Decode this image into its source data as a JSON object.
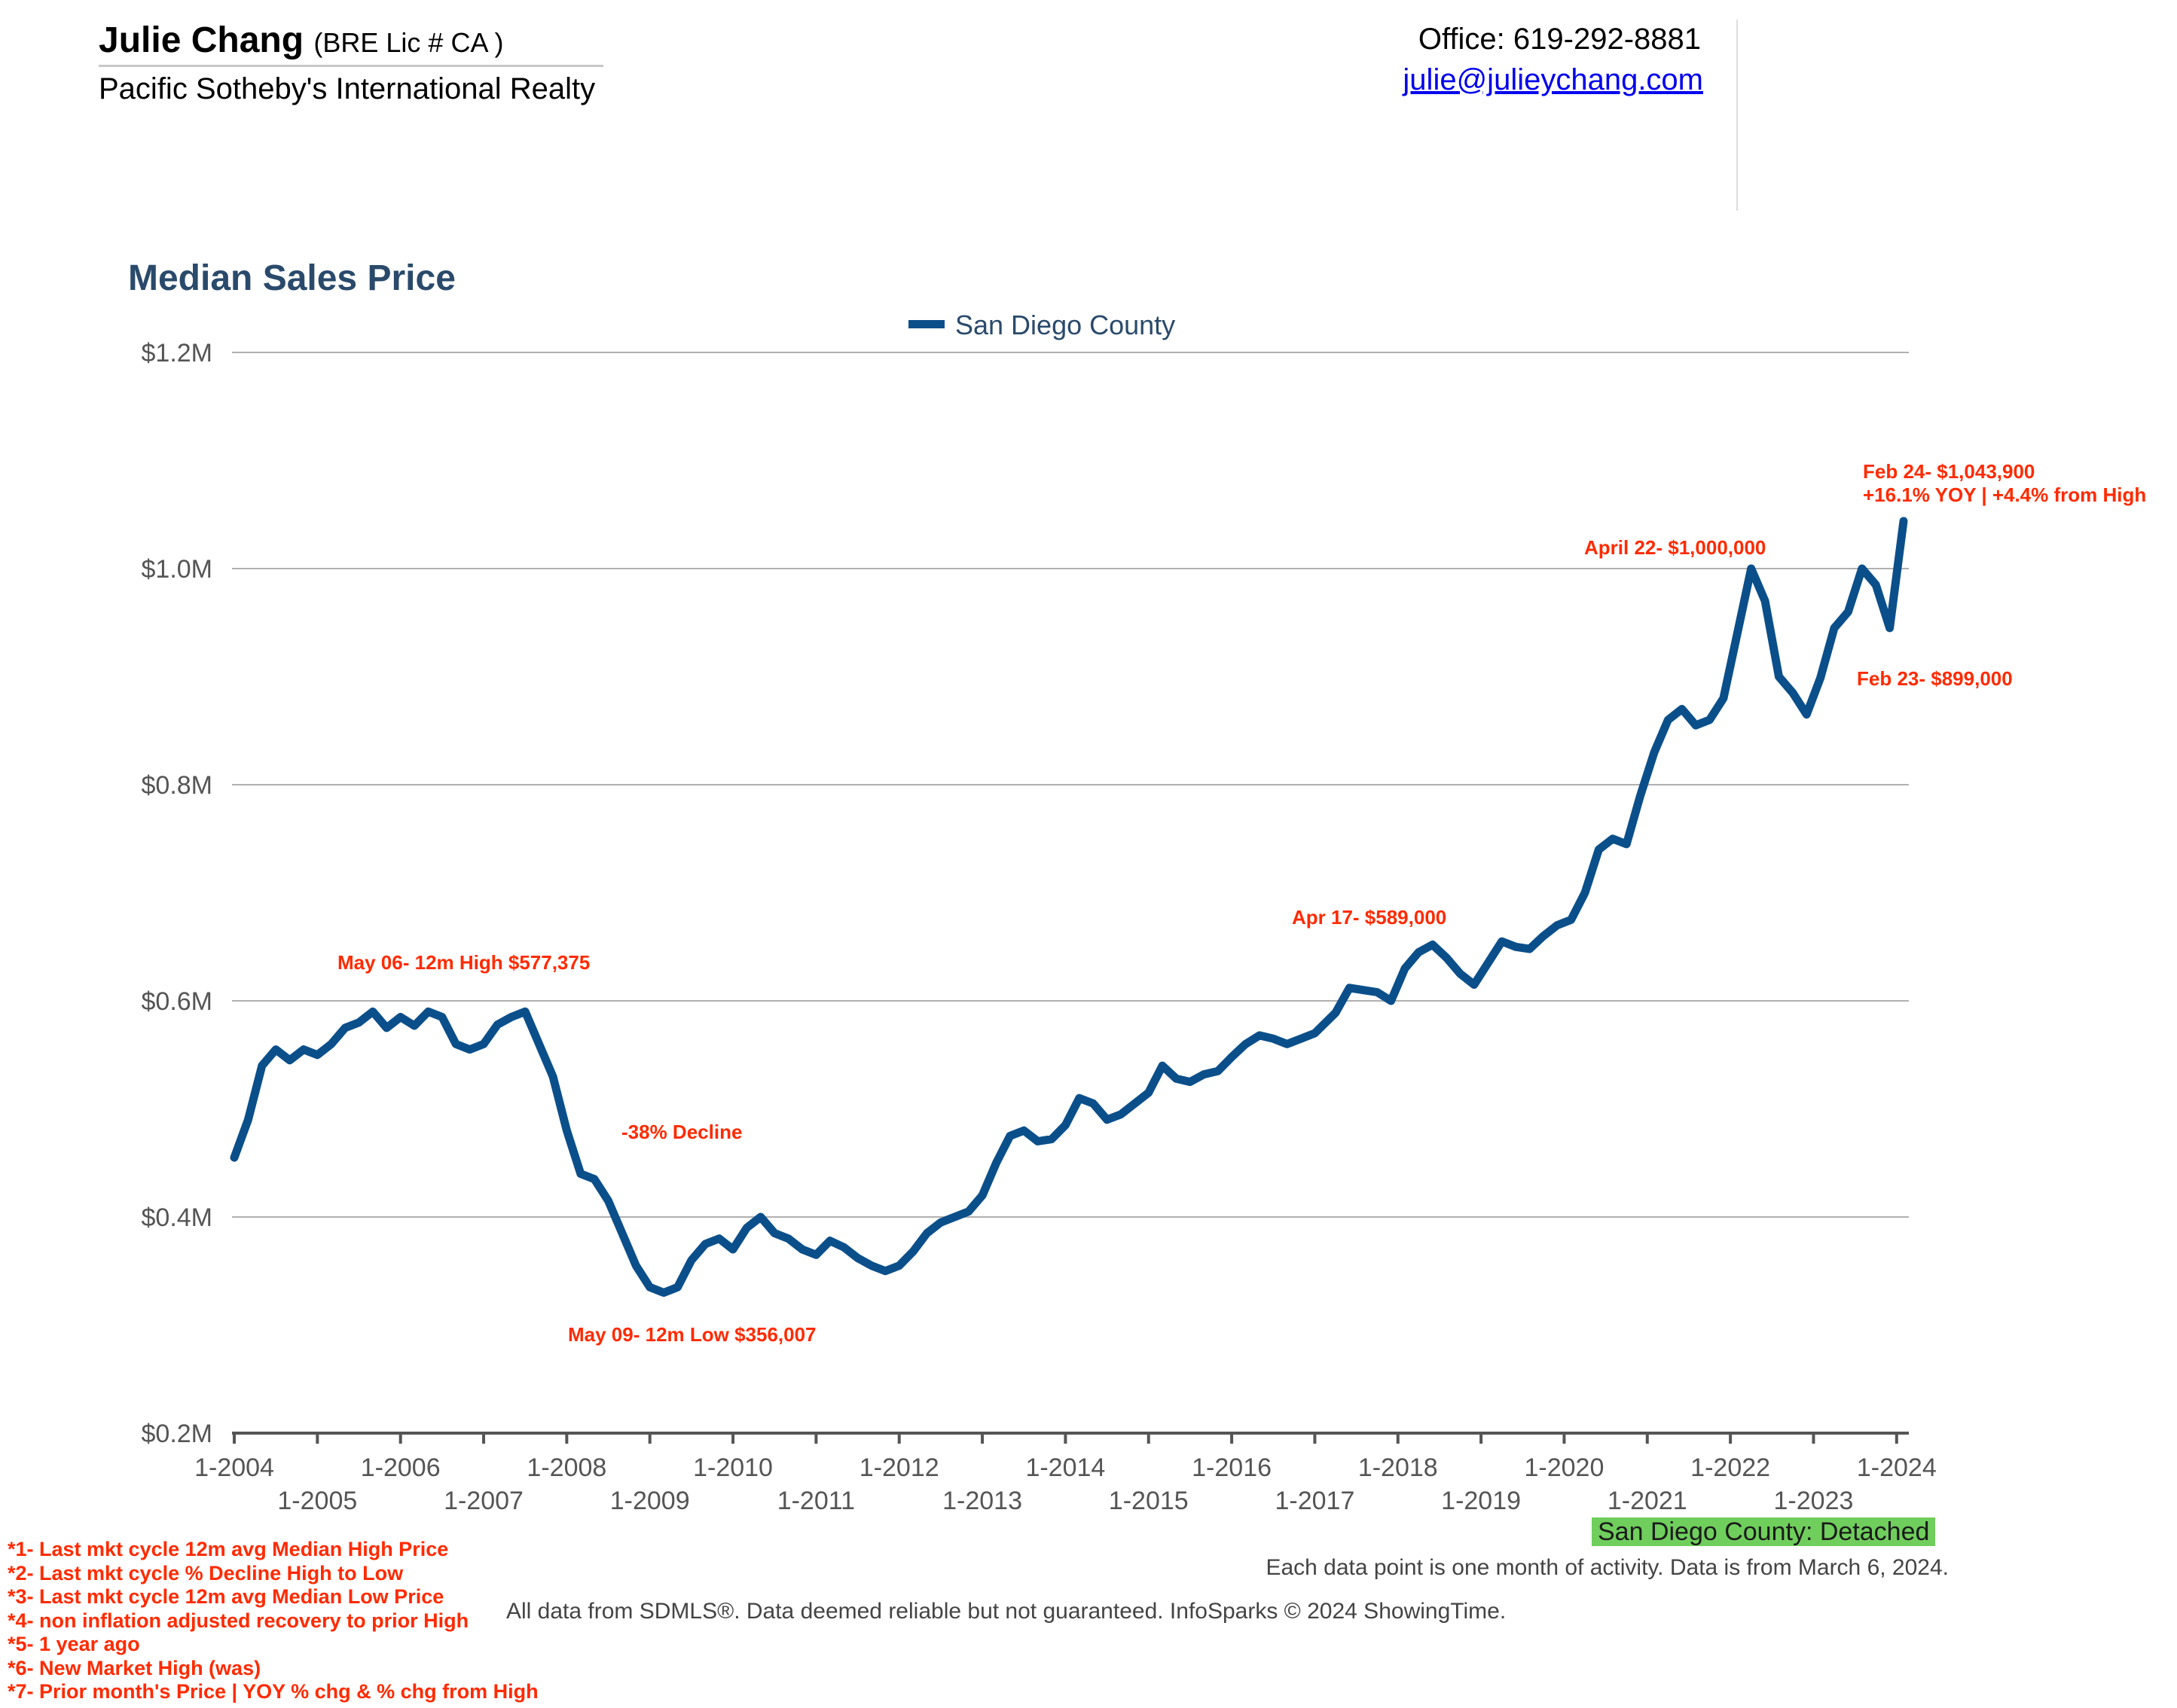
{
  "header": {
    "agent_name": "Julie Chang",
    "license": "(BRE Lic # CA )",
    "company": "Pacific Sotheby's International Realty",
    "office": "Office: 619-292-8881",
    "email": "julie@julieychang.com"
  },
  "chart_data": {
    "type": "line",
    "title": "Median Sales Price",
    "xlabel": "",
    "ylabel": "",
    "ylim": [
      200000,
      1200000
    ],
    "yticks": [
      200000,
      400000,
      600000,
      800000,
      1000000,
      1200000
    ],
    "ytick_labels": [
      "$0.2M",
      "$0.4M",
      "$0.6M",
      "$0.8M",
      "$1.0M",
      "$1.2M"
    ],
    "x_start": "2004-01",
    "x_end": "2024-02",
    "xtick_labels": [
      "1-2004",
      "1-2005",
      "1-2006",
      "1-2007",
      "1-2008",
      "1-2009",
      "1-2010",
      "1-2011",
      "1-2012",
      "1-2013",
      "1-2014",
      "1-2015",
      "1-2016",
      "1-2017",
      "1-2018",
      "1-2019",
      "1-2020",
      "1-2021",
      "1-2022",
      "1-2023",
      "1-2024"
    ],
    "grid": true,
    "legend_position": "top-center",
    "series": [
      {
        "name": "San Diego County",
        "color": "#0b4f8a",
        "points": [
          [
            "2004-01",
            455000
          ],
          [
            "2004-03",
            490000
          ],
          [
            "2004-05",
            540000
          ],
          [
            "2004-07",
            555000
          ],
          [
            "2004-09",
            545000
          ],
          [
            "2004-11",
            555000
          ],
          [
            "2005-01",
            550000
          ],
          [
            "2005-03",
            560000
          ],
          [
            "2005-05",
            575000
          ],
          [
            "2005-07",
            580000
          ],
          [
            "2005-09",
            590000
          ],
          [
            "2005-11",
            575000
          ],
          [
            "2006-01",
            585000
          ],
          [
            "2006-03",
            577000
          ],
          [
            "2006-05",
            590000
          ],
          [
            "2006-07",
            585000
          ],
          [
            "2006-09",
            560000
          ],
          [
            "2006-11",
            555000
          ],
          [
            "2007-01",
            560000
          ],
          [
            "2007-03",
            578000
          ],
          [
            "2007-05",
            585000
          ],
          [
            "2007-07",
            590000
          ],
          [
            "2007-09",
            560000
          ],
          [
            "2007-11",
            530000
          ],
          [
            "2008-01",
            480000
          ],
          [
            "2008-03",
            440000
          ],
          [
            "2008-05",
            435000
          ],
          [
            "2008-07",
            415000
          ],
          [
            "2008-09",
            385000
          ],
          [
            "2008-11",
            355000
          ],
          [
            "2009-01",
            335000
          ],
          [
            "2009-03",
            330000
          ],
          [
            "2009-05",
            335000
          ],
          [
            "2009-07",
            360000
          ],
          [
            "2009-09",
            375000
          ],
          [
            "2009-11",
            380000
          ],
          [
            "2010-01",
            370000
          ],
          [
            "2010-03",
            390000
          ],
          [
            "2010-05",
            400000
          ],
          [
            "2010-07",
            385000
          ],
          [
            "2010-09",
            380000
          ],
          [
            "2010-11",
            370000
          ],
          [
            "2011-01",
            365000
          ],
          [
            "2011-03",
            378000
          ],
          [
            "2011-05",
            372000
          ],
          [
            "2011-07",
            362000
          ],
          [
            "2011-09",
            355000
          ],
          [
            "2011-11",
            350000
          ],
          [
            "2012-01",
            355000
          ],
          [
            "2012-03",
            368000
          ],
          [
            "2012-05",
            385000
          ],
          [
            "2012-07",
            395000
          ],
          [
            "2012-09",
            400000
          ],
          [
            "2012-11",
            405000
          ],
          [
            "2013-01",
            420000
          ],
          [
            "2013-03",
            450000
          ],
          [
            "2013-05",
            475000
          ],
          [
            "2013-07",
            480000
          ],
          [
            "2013-09",
            470000
          ],
          [
            "2013-11",
            472000
          ],
          [
            "2014-01",
            485000
          ],
          [
            "2014-03",
            510000
          ],
          [
            "2014-05",
            505000
          ],
          [
            "2014-07",
            490000
          ],
          [
            "2014-09",
            495000
          ],
          [
            "2014-11",
            505000
          ],
          [
            "2015-01",
            515000
          ],
          [
            "2015-03",
            540000
          ],
          [
            "2015-05",
            528000
          ],
          [
            "2015-07",
            525000
          ],
          [
            "2015-09",
            532000
          ],
          [
            "2015-11",
            535000
          ],
          [
            "2016-01",
            548000
          ],
          [
            "2016-03",
            560000
          ],
          [
            "2016-05",
            568000
          ],
          [
            "2016-07",
            565000
          ],
          [
            "2016-09",
            560000
          ],
          [
            "2016-11",
            565000
          ],
          [
            "2017-01",
            570000
          ],
          [
            "2017-04",
            589000
          ],
          [
            "2017-06",
            612000
          ],
          [
            "2017-08",
            610000
          ],
          [
            "2017-10",
            608000
          ],
          [
            "2017-12",
            600000
          ],
          [
            "2018-02",
            630000
          ],
          [
            "2018-04",
            645000
          ],
          [
            "2018-06",
            652000
          ],
          [
            "2018-08",
            640000
          ],
          [
            "2018-10",
            625000
          ],
          [
            "2018-12",
            615000
          ],
          [
            "2019-02",
            635000
          ],
          [
            "2019-04",
            655000
          ],
          [
            "2019-06",
            650000
          ],
          [
            "2019-08",
            648000
          ],
          [
            "2019-10",
            660000
          ],
          [
            "2019-12",
            670000
          ],
          [
            "2020-02",
            675000
          ],
          [
            "2020-04",
            700000
          ],
          [
            "2020-06",
            740000
          ],
          [
            "2020-08",
            750000
          ],
          [
            "2020-10",
            745000
          ],
          [
            "2020-12",
            790000
          ],
          [
            "2021-02",
            830000
          ],
          [
            "2021-04",
            860000
          ],
          [
            "2021-06",
            870000
          ],
          [
            "2021-08",
            855000
          ],
          [
            "2021-10",
            860000
          ],
          [
            "2021-12",
            880000
          ],
          [
            "2022-02",
            940000
          ],
          [
            "2022-04",
            1000000
          ],
          [
            "2022-06",
            970000
          ],
          [
            "2022-08",
            900000
          ],
          [
            "2022-10",
            885000
          ],
          [
            "2022-12",
            865000
          ],
          [
            "2023-02",
            899000
          ],
          [
            "2023-04",
            945000
          ],
          [
            "2023-06",
            960000
          ],
          [
            "2023-08",
            1000000
          ],
          [
            "2023-10",
            985000
          ],
          [
            "2023-12",
            945000
          ],
          [
            "2024-02",
            1043900
          ]
        ]
      }
    ],
    "annotations": [
      {
        "text": "May 06- 12m High $577,375",
        "date": "2006-05",
        "value": 577375
      },
      {
        "text": "-38% Decline",
        "date": "2009-05",
        "value": 475000
      },
      {
        "text": "May 09- 12m Low $356,007",
        "date": "2009-05",
        "value": 356007
      },
      {
        "text": "Apr 17- $589,000",
        "date": "2017-04",
        "value": 589000
      },
      {
        "text": "April 22- $1,000,000",
        "date": "2022-04",
        "value": 1000000
      },
      {
        "text": "Feb 23- $899,000",
        "date": "2023-02",
        "value": 899000
      },
      {
        "text": "Feb 24- $1,043,900",
        "date": "2024-02",
        "value": 1043900
      },
      {
        "text": "+16.1% YOY | +4.4% from High",
        "date": "2024-02",
        "value": 1043900
      }
    ]
  },
  "badge": "San Diego County: Detached",
  "note": "Each data point is one month of activity. Data is from March 6, 2024.",
  "disclaimer": "All data from SDMLS®. Data deemed reliable but not guaranteed. InfoSparks © 2024 ShowingTime.",
  "footnotes": [
    "*1- Last mkt cycle 12m avg Median High Price",
    "*2- Last mkt cycle % Decline High to Low",
    "*3- Last mkt cycle 12m avg Median Low Price",
    "*4- non inflation adjusted recovery to prior High",
    "*5- 1 year ago",
    "*6- New Market High (was)",
    "*7- Prior month's Price | YOY % chg & % chg from High"
  ],
  "colors": {
    "line": "#0b4f8a",
    "annotation": "#ff2a00",
    "title": "#2a4a6b",
    "badge": "#6fce5c"
  }
}
